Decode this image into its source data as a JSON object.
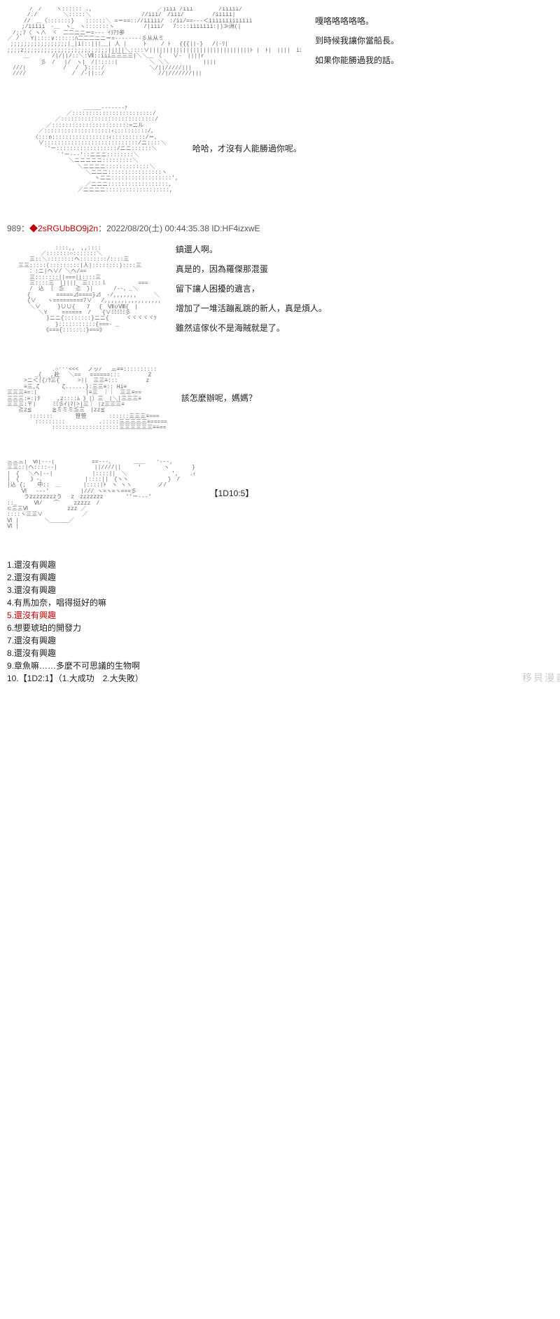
{
  "panels": [
    {
      "ascii_hint": "[ASCII art: two characters, dense line art]",
      "dialogue": [
        "嘎咯咯咯咯咯。",
        "到時候我讓你當船長。",
        "如果你能勝過我的話。"
      ]
    },
    {
      "ascii_hint": "[ASCII art: helmeted/hooded figure profile]",
      "dialogue": [
        "哈哈，才沒有人能勝過你呢。"
      ]
    }
  ],
  "post_header": {
    "number": "989",
    "separator": "：",
    "trip": "◆2sRGUbBO9j2n",
    "timestamp": "：2022/08/20(土) 00:44:35.38 ID:HF4izxwE"
  },
  "panels2": [
    {
      "ascii_hint": "[ASCII art: large round figure with small companion]",
      "dialogue": [
        "鎮還人啊。",
        "真是的，因為羅傑那混蛋",
        "留下讓人困擾的遺言，",
        "增加了一堆活蹦亂跳的新人，真是煩人。",
        "雖然這傢伙不是海賊就是了。"
      ]
    },
    {
      "ascii_hint": "[ASCII art: wide scene with figures and 'zzz']",
      "dialogue": [
        "該怎麼辦呢，媽媽？"
      ]
    },
    {
      "ascii_hint": "[ASCII art: close-up face with wide grin, 'zzzzzz']",
      "dialogue": [
        "【1D10:5】"
      ]
    }
  ],
  "options": [
    {
      "n": "1",
      "text": "還沒有興趣",
      "selected": false
    },
    {
      "n": "2",
      "text": "還沒有興趣",
      "selected": false
    },
    {
      "n": "3",
      "text": "還沒有興趣",
      "selected": false
    },
    {
      "n": "4",
      "text": "有馬加奈，唱得挺好的嘛",
      "selected": false
    },
    {
      "n": "5",
      "text": "還沒有興趣",
      "selected": true
    },
    {
      "n": "6",
      "text": "想要琥珀的開發力",
      "selected": false
    },
    {
      "n": "7",
      "text": "還沒有興趣",
      "selected": false
    },
    {
      "n": "8",
      "text": "還沒有興趣",
      "selected": false
    },
    {
      "n": "9",
      "text": "章魚嘛……多麼不可思議的生物啊",
      "selected": false
    },
    {
      "n": "10",
      "text": "【1D2:1】（1.大成功　2.大失敗）",
      "selected": false
    }
  ],
  "watermark": "移貝漫畫"
}
